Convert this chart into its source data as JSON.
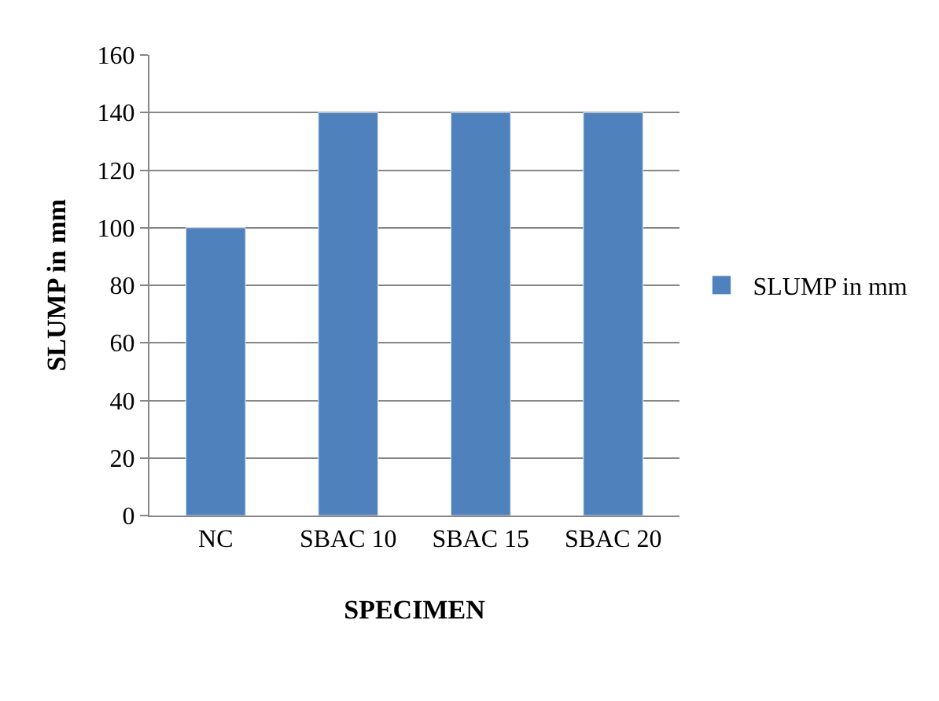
{
  "chart_data": {
    "type": "bar",
    "categories": [
      "NC",
      "SBAC 10",
      "SBAC 15",
      "SBAC 20"
    ],
    "series": [
      {
        "name": "SLUMP in mm",
        "color": "#4f81bd",
        "values": [
          100,
          140,
          140,
          140
        ]
      }
    ],
    "xlabel": "SPECIMEN",
    "ylabel": "SLUMP in mm",
    "ylim": [
      0,
      160
    ],
    "yticks": [
      0,
      20,
      40,
      60,
      80,
      100,
      120,
      140,
      160
    ],
    "grid": "y",
    "legend": "right"
  }
}
